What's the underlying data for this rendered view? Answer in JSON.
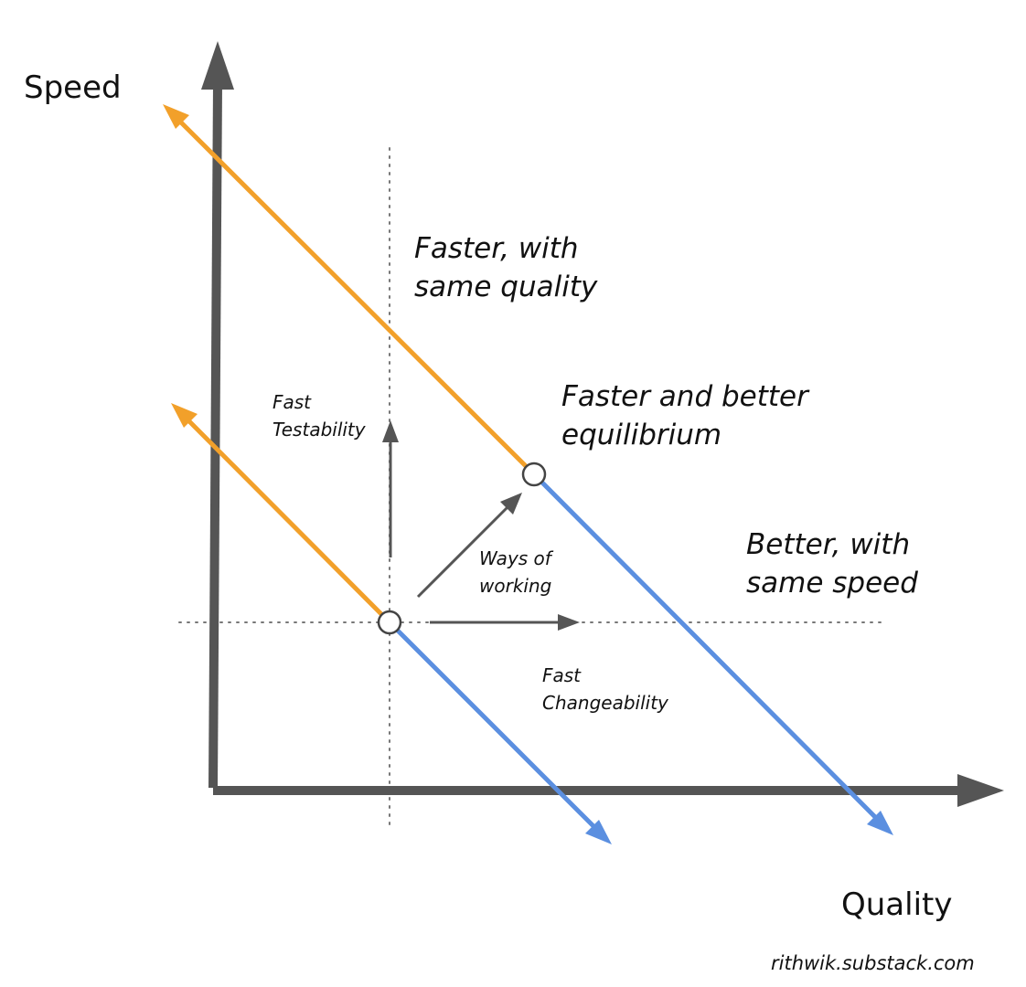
{
  "axes": {
    "y_label": "Speed",
    "x_label": "Quality"
  },
  "regions": {
    "faster_same_quality": [
      "Faster, with",
      "same quality"
    ],
    "better_same_speed": [
      "Better, with",
      "same speed"
    ],
    "faster_better_equilibrium": [
      "Faster and better",
      "equilibrium"
    ]
  },
  "levers": {
    "fast_testability": [
      "Fast",
      "Testability"
    ],
    "ways_of_working": [
      "Ways of",
      "working"
    ],
    "fast_changeability": [
      "Fast",
      "Changeability"
    ]
  },
  "credit": "rithwik.substack.com",
  "colors": {
    "axis": "#555555",
    "speed_arrow": "#F2A02A",
    "quality_arrow": "#5B8FE0",
    "guide_line": "#777777",
    "lever_arrow": "#555555",
    "text": "#111111"
  }
}
